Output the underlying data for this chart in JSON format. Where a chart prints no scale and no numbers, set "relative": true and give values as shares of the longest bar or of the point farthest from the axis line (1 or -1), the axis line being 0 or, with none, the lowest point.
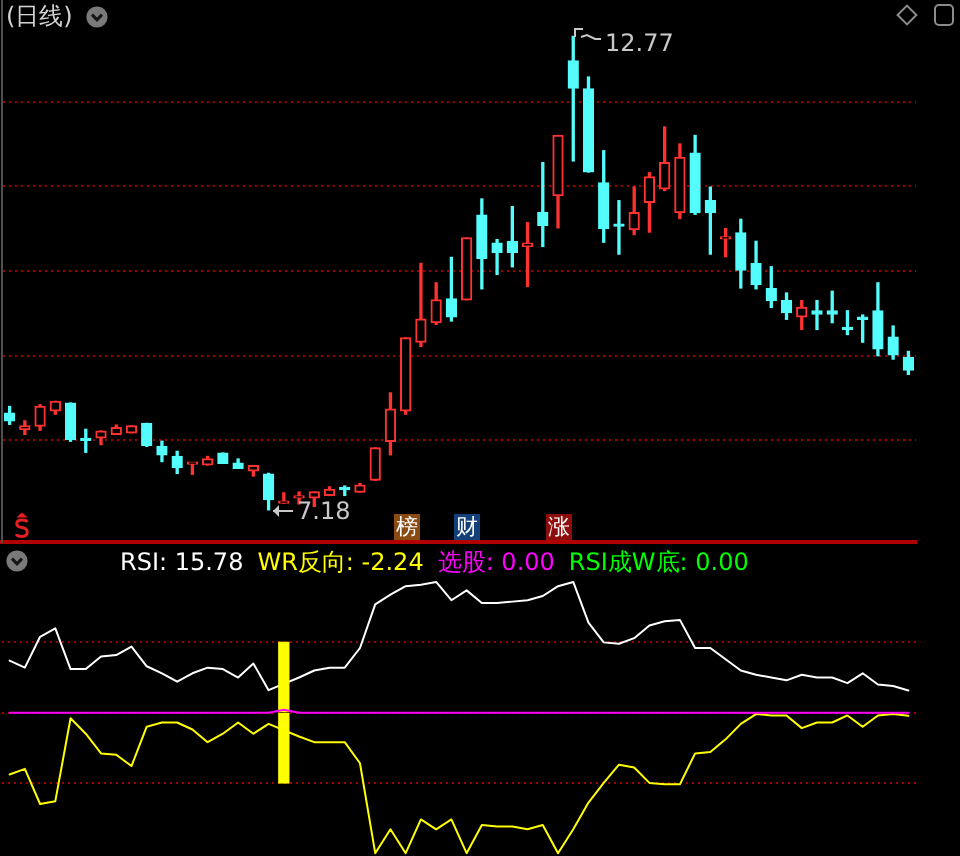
{
  "chart_data": [
    {
      "type": "candlestick",
      "title": "(日线)",
      "categories": [
        null,
        null,
        null,
        null,
        null,
        null,
        null,
        null,
        null,
        null,
        null,
        null,
        null,
        null,
        null,
        null,
        null,
        null,
        null,
        null,
        null,
        null,
        null,
        null,
        null,
        null,
        null,
        null,
        null,
        null,
        null,
        null,
        null,
        null,
        null,
        null,
        null,
        null,
        null,
        null,
        null,
        null,
        null,
        null,
        null,
        null,
        null,
        null,
        null,
        null,
        null,
        null,
        null,
        null,
        null,
        null,
        null,
        null,
        null,
        null
      ],
      "ohlc": [
        [
          8.32,
          8.4,
          8.19,
          8.23
        ],
        [
          8.13,
          8.23,
          8.07,
          8.17
        ],
        [
          8.17,
          8.42,
          8.12,
          8.4
        ],
        [
          8.35,
          8.46,
          8.31,
          8.46
        ],
        [
          8.44,
          8.44,
          7.99,
          8.01
        ],
        [
          8.01,
          8.13,
          7.86,
          8.0
        ],
        [
          8.03,
          8.11,
          7.95,
          8.11
        ],
        [
          8.07,
          8.18,
          8.07,
          8.15
        ],
        [
          8.09,
          8.17,
          8.09,
          8.17
        ],
        [
          8.2,
          8.2,
          7.93,
          7.94
        ],
        [
          7.93,
          7.99,
          7.75,
          7.83
        ],
        [
          7.81,
          7.87,
          7.61,
          7.68
        ],
        [
          7.72,
          7.73,
          7.6,
          7.73
        ],
        [
          7.71,
          7.81,
          7.71,
          7.78
        ],
        [
          7.85,
          7.85,
          7.73,
          7.73
        ],
        [
          7.73,
          7.78,
          7.67,
          7.67
        ],
        [
          7.64,
          7.7,
          7.58,
          7.7
        ],
        [
          7.6,
          7.61,
          7.18,
          7.3
        ],
        [
          7.26,
          7.38,
          7.26,
          7.27
        ],
        [
          7.32,
          7.39,
          7.25,
          7.33
        ],
        [
          7.32,
          7.39,
          7.22,
          7.39
        ],
        [
          7.35,
          7.45,
          7.35,
          7.42
        ],
        [
          7.43,
          7.46,
          7.35,
          7.42
        ],
        [
          7.39,
          7.49,
          7.39,
          7.47
        ],
        [
          7.53,
          7.91,
          7.53,
          7.91
        ],
        [
          7.99,
          8.56,
          7.83,
          8.37
        ],
        [
          8.35,
          9.21,
          8.31,
          9.21
        ],
        [
          9.16,
          10.09,
          9.11,
          9.43
        ],
        [
          9.39,
          9.86,
          9.37,
          9.66
        ],
        [
          9.67,
          10.16,
          9.41,
          9.46
        ],
        [
          9.66,
          10.39,
          9.66,
          10.39
        ],
        [
          10.66,
          10.85,
          9.79,
          10.15
        ],
        [
          10.33,
          10.37,
          9.96,
          10.22
        ],
        [
          10.35,
          10.76,
          10.05,
          10.22
        ],
        [
          10.29,
          10.57,
          9.82,
          10.33
        ],
        [
          10.69,
          11.28,
          10.29,
          10.54
        ],
        [
          10.89,
          11.6,
          10.51,
          11.6
        ],
        [
          12.48,
          12.77,
          11.3,
          12.16
        ],
        [
          12.15,
          12.29,
          11.17,
          11.17
        ],
        [
          11.04,
          11.42,
          10.34,
          10.5
        ],
        [
          10.54,
          10.83,
          10.2,
          10.53
        ],
        [
          10.49,
          10.99,
          10.43,
          10.69
        ],
        [
          10.81,
          11.16,
          10.46,
          11.11
        ],
        [
          10.97,
          11.7,
          10.95,
          11.28
        ],
        [
          10.69,
          11.5,
          10.62,
          11.34
        ],
        [
          11.39,
          11.6,
          10.67,
          10.69
        ],
        [
          10.83,
          10.99,
          10.2,
          10.69
        ],
        [
          10.38,
          10.5,
          10.17,
          10.39
        ],
        [
          10.45,
          10.61,
          9.8,
          10.01
        ],
        [
          10.09,
          10.35,
          9.79,
          9.84
        ],
        [
          9.79,
          10.05,
          9.57,
          9.65
        ],
        [
          9.65,
          9.74,
          9.43,
          9.51
        ],
        [
          9.46,
          9.65,
          9.31,
          9.57
        ],
        [
          9.53,
          9.65,
          9.31,
          9.49
        ],
        [
          9.53,
          9.76,
          9.39,
          9.49
        ],
        [
          9.32,
          9.53,
          9.25,
          9.31
        ],
        [
          9.44,
          9.48,
          9.16,
          9.43
        ],
        [
          9.53,
          9.86,
          9.0,
          9.08
        ],
        [
          9.22,
          9.35,
          8.96,
          9.01
        ],
        [
          8.98,
          9.05,
          8.78,
          8.83
        ]
      ],
      "colors": [
        "#54fcfc",
        "#ff3232",
        "#ff3232",
        "#ff3232",
        "#54fcfc",
        "#54fcfc",
        "#ff3232",
        "#ff3232",
        "#ff3232",
        "#54fcfc",
        "#54fcfc",
        "#54fcfc",
        "#ff3232",
        "#ff3232",
        "#54fcfc",
        "#54fcfc",
        "#ff3232",
        "#54fcfc",
        "#ff3232",
        "#ff3232",
        "#ff3232",
        "#ff3232",
        "#54fcfc",
        "#ff3232",
        "#ff3232",
        "#ff3232",
        "#ff3232",
        "#ff3232",
        "#ff3232",
        "#54fcfc",
        "#ff3232",
        "#54fcfc",
        "#54fcfc",
        "#54fcfc",
        "#ff3232",
        "#54fcfc",
        "#ff3232",
        "#54fcfc",
        "#54fcfc",
        "#54fcfc",
        "#54fcfc",
        "#ff3232",
        "#ff3232",
        "#ff3232",
        "#ff3232",
        "#54fcfc",
        "#54fcfc",
        "#ff3232",
        "#54fcfc",
        "#54fcfc",
        "#54fcfc",
        "#54fcfc",
        "#ff3232",
        "#54fcfc",
        "#54fcfc",
        "#54fcfc",
        "#54fcfc",
        "#54fcfc",
        "#54fcfc",
        "#54fcfc"
      ],
      "ylim": [
        6.8,
        13.2
      ],
      "yticks": [
        {
          "value": 8,
          "label": null
        },
        {
          "value": 9,
          "label": null
        },
        {
          "value": 10,
          "label": null
        },
        {
          "value": 11,
          "label": null
        },
        {
          "value": 12,
          "label": null
        }
      ],
      "grid": "y",
      "tick_labels": false,
      "annotations": [
        "12.77",
        "7.18",
        "榜",
        "财",
        "涨"
      ]
    },
    {
      "type": "line",
      "relative": true,
      "categories": [
        null,
        null,
        null,
        null,
        null,
        null,
        null,
        null,
        null,
        null,
        null,
        null,
        null,
        null,
        null,
        null,
        null,
        null,
        null,
        null,
        null,
        null,
        null,
        null,
        null,
        null,
        null,
        null,
        null,
        null,
        null,
        null,
        null,
        null,
        null,
        null,
        null,
        null,
        null,
        null,
        null,
        null,
        null,
        null,
        null,
        null,
        null,
        null,
        null,
        null,
        null,
        null,
        null,
        null,
        null,
        null,
        null,
        null,
        null,
        null
      ],
      "series": [
        {
          "name": "RSI: 15.78",
          "color": "#ffffff",
          "values": [
            0.37,
            0.32,
            0.54,
            0.6,
            0.31,
            0.31,
            0.4,
            0.41,
            0.47,
            0.33,
            0.28,
            0.22,
            0.28,
            0.32,
            0.31,
            0.25,
            0.35,
            0.16,
            null,
            0.25,
            0.3,
            0.32,
            0.32,
            0.46,
            0.77,
            0.84,
            0.9,
            0.91,
            0.93,
            0.8,
            0.87,
            0.78,
            0.78,
            0.79,
            0.8,
            0.83,
            0.9,
            0.93,
            0.64,
            0.5,
            0.49,
            0.53,
            0.62,
            0.65,
            0.66,
            0.46,
            0.46,
            0.38,
            0.3,
            0.27,
            0.25,
            0.23,
            0.27,
            0.25,
            0.25,
            0.21,
            0.28,
            0.2,
            0.19,
            0.1578
          ]
        },
        {
          "name": "WR反向: -2.24",
          "color": "#ffff00",
          "values": [
            -0.44,
            -0.4,
            -0.65,
            -0.63,
            -0.04,
            -0.15,
            -0.29,
            -0.3,
            -0.38,
            -0.1,
            -0.07,
            -0.07,
            -0.12,
            -0.21,
            -0.15,
            -0.07,
            -0.15,
            -0.08,
            null,
            -0.17,
            -0.21,
            -0.21,
            -0.21,
            -0.36,
            -1,
            -0.83,
            -1,
            -0.76,
            -0.83,
            -0.76,
            -1,
            -0.8,
            -0.81,
            -0.81,
            -0.83,
            -0.8,
            -1,
            -0.83,
            -0.64,
            -0.5,
            -0.37,
            -0.39,
            -0.5,
            -0.51,
            -0.51,
            -0.29,
            -0.28,
            -0.19,
            -0.08,
            -0.01,
            -0.02,
            -0.02,
            -0.11,
            -0.07,
            -0.07,
            -0.02,
            -0.1,
            -0.02,
            -0.01,
            -0.0224
          ]
        },
        {
          "type": "bar",
          "color": "#ffff00",
          "values": [
            null,
            null,
            null,
            null,
            null,
            null,
            null,
            null,
            null,
            null,
            null,
            null,
            null,
            null,
            null,
            null,
            null,
            null,
            0.5,
            null,
            null,
            null,
            null,
            null,
            null,
            null,
            null,
            null,
            null,
            null,
            null,
            null,
            null,
            null,
            null,
            null,
            null,
            null,
            null,
            null,
            null,
            null,
            null,
            null,
            null,
            null,
            null,
            null,
            null,
            null,
            null,
            null,
            null,
            null,
            null,
            null,
            null,
            null,
            null,
            null
          ]
        },
        {
          "type": "bar",
          "color": "#ffff00",
          "values": [
            null,
            null,
            null,
            null,
            null,
            null,
            null,
            null,
            null,
            null,
            null,
            null,
            null,
            null,
            null,
            null,
            null,
            null,
            -0.5,
            null,
            null,
            null,
            null,
            null,
            null,
            null,
            null,
            null,
            null,
            null,
            null,
            null,
            null,
            null,
            null,
            null,
            null,
            null,
            null,
            null,
            null,
            null,
            null,
            null,
            null,
            null,
            null,
            null,
            null,
            null,
            null,
            null,
            null,
            null,
            null,
            null,
            null,
            null,
            null,
            null
          ]
        },
        {
          "name": "选股: 0.00",
          "color": "#ff00ff",
          "values": [
            0,
            0,
            0,
            0,
            0,
            0,
            0,
            0,
            0,
            0,
            0,
            0,
            0,
            0,
            0,
            0,
            0,
            0,
            0.02,
            0,
            0,
            0,
            0,
            0,
            0,
            0,
            0,
            0,
            0,
            0,
            0,
            0,
            0,
            0,
            0,
            0,
            0,
            0,
            0,
            0,
            0,
            0,
            0,
            0,
            0,
            0,
            0,
            0,
            0,
            0,
            0,
            0,
            0,
            0,
            0,
            0,
            0,
            0,
            0,
            0
          ]
        },
        {
          "name": "RSI成W底: 0.00",
          "color": "#00ff00",
          "values": [
            null,
            null,
            null,
            null,
            null,
            null,
            null,
            null,
            null,
            null,
            null,
            null,
            null,
            null,
            null,
            null,
            null,
            null,
            null,
            null,
            null,
            null,
            null,
            null,
            null,
            null,
            null,
            null,
            null,
            null,
            null,
            null,
            null,
            null,
            null,
            null,
            null,
            null,
            null,
            null,
            null,
            null,
            null,
            null,
            null,
            null,
            null,
            null,
            null,
            null,
            null,
            null,
            null,
            null,
            null,
            null,
            null,
            null,
            null,
            null
          ]
        }
      ],
      "ref_lines": [
        {
          "axis": "y",
          "value": 0.5,
          "color": "#a00000",
          "line_style": "dotted"
        },
        {
          "axis": "y",
          "value": 0,
          "color": "#a00000",
          "line_style": "dotted"
        },
        {
          "axis": "y",
          "value": -0.5,
          "color": "#a00000",
          "line_style": "dotted"
        }
      ],
      "tick_labels": false,
      "legend": "top left"
    }
  ]
}
